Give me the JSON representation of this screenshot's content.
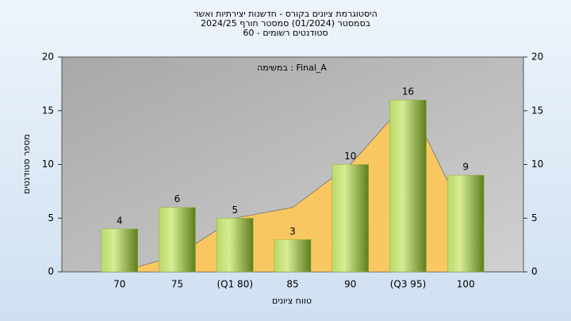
{
  "chart_data": {
    "type": "bar",
    "title": [
      "היסטוגרמת ציונים בקורס - חדשנות יצירתיות ואשר",
      "בסמסטר  (01/2024)  סמסטר חורף 2024/25",
      "סטודנטים רשומים - 60"
    ],
    "annotation": "במשימה : Final_A",
    "x_label": "טווח ציונים",
    "y_label": "מספר סטודנטים",
    "categories": [
      "70",
      "75",
      "(Q1 80)",
      "85",
      "90",
      "(Q3 95)",
      "100"
    ],
    "values": [
      4,
      6,
      5,
      3,
      10,
      16,
      9
    ],
    "color": "#8fb03a",
    "area": {
      "values": [
        0,
        1.5,
        5,
        6,
        10,
        16,
        5
      ],
      "color": "#ffc857"
    },
    "ylim": [
      0,
      20
    ],
    "yticks": [
      0,
      5,
      10,
      15,
      20
    ],
    "y2lim": [
      0,
      20
    ],
    "y2ticks": [
      0,
      5,
      10,
      15,
      20
    ]
  }
}
